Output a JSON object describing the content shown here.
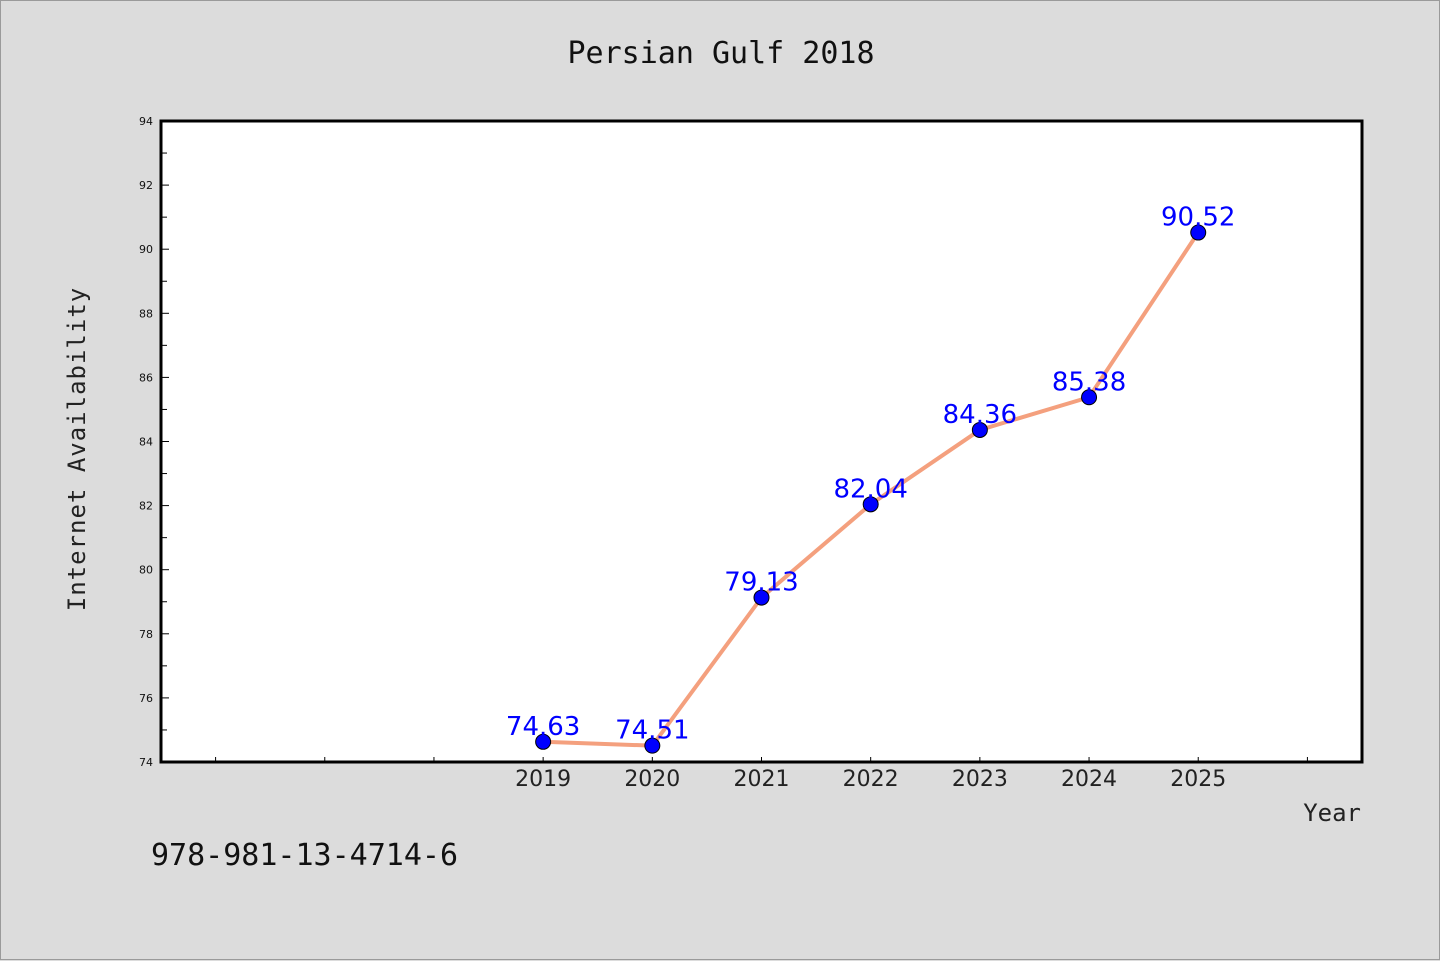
{
  "footnote": "978-981-13-4714-6",
  "chart_data": {
    "type": "line",
    "title": "Persian Gulf 2018",
    "xlabel": "Year",
    "ylabel": "Internet Availability",
    "x": [
      "2019",
      "2020",
      "2021",
      "2022",
      "2023",
      "2024",
      "2025"
    ],
    "series": [
      {
        "values": [
          74.63,
          74.51,
          79.13,
          82.04,
          84.36,
          85.38,
          90.52
        ],
        "data_labels": [
          "74.63",
          "74.51",
          "79.13",
          "82.04",
          "84.36",
          "85.38",
          "90.52"
        ]
      }
    ],
    "ylim": [
      74,
      94
    ],
    "yticks": [
      "74",
      "76",
      "78",
      "80",
      "82",
      "84",
      "86",
      "88",
      "90",
      "92",
      "94"
    ],
    "xlim": [
      2015.5,
      2026.5
    ],
    "grid": false,
    "legend": "none",
    "colors": {
      "line": "#f4a07e",
      "marker": "#0000ff",
      "label": "#0000ff",
      "background": "#dcdcdc",
      "plot_background": "#ffffff"
    }
  }
}
